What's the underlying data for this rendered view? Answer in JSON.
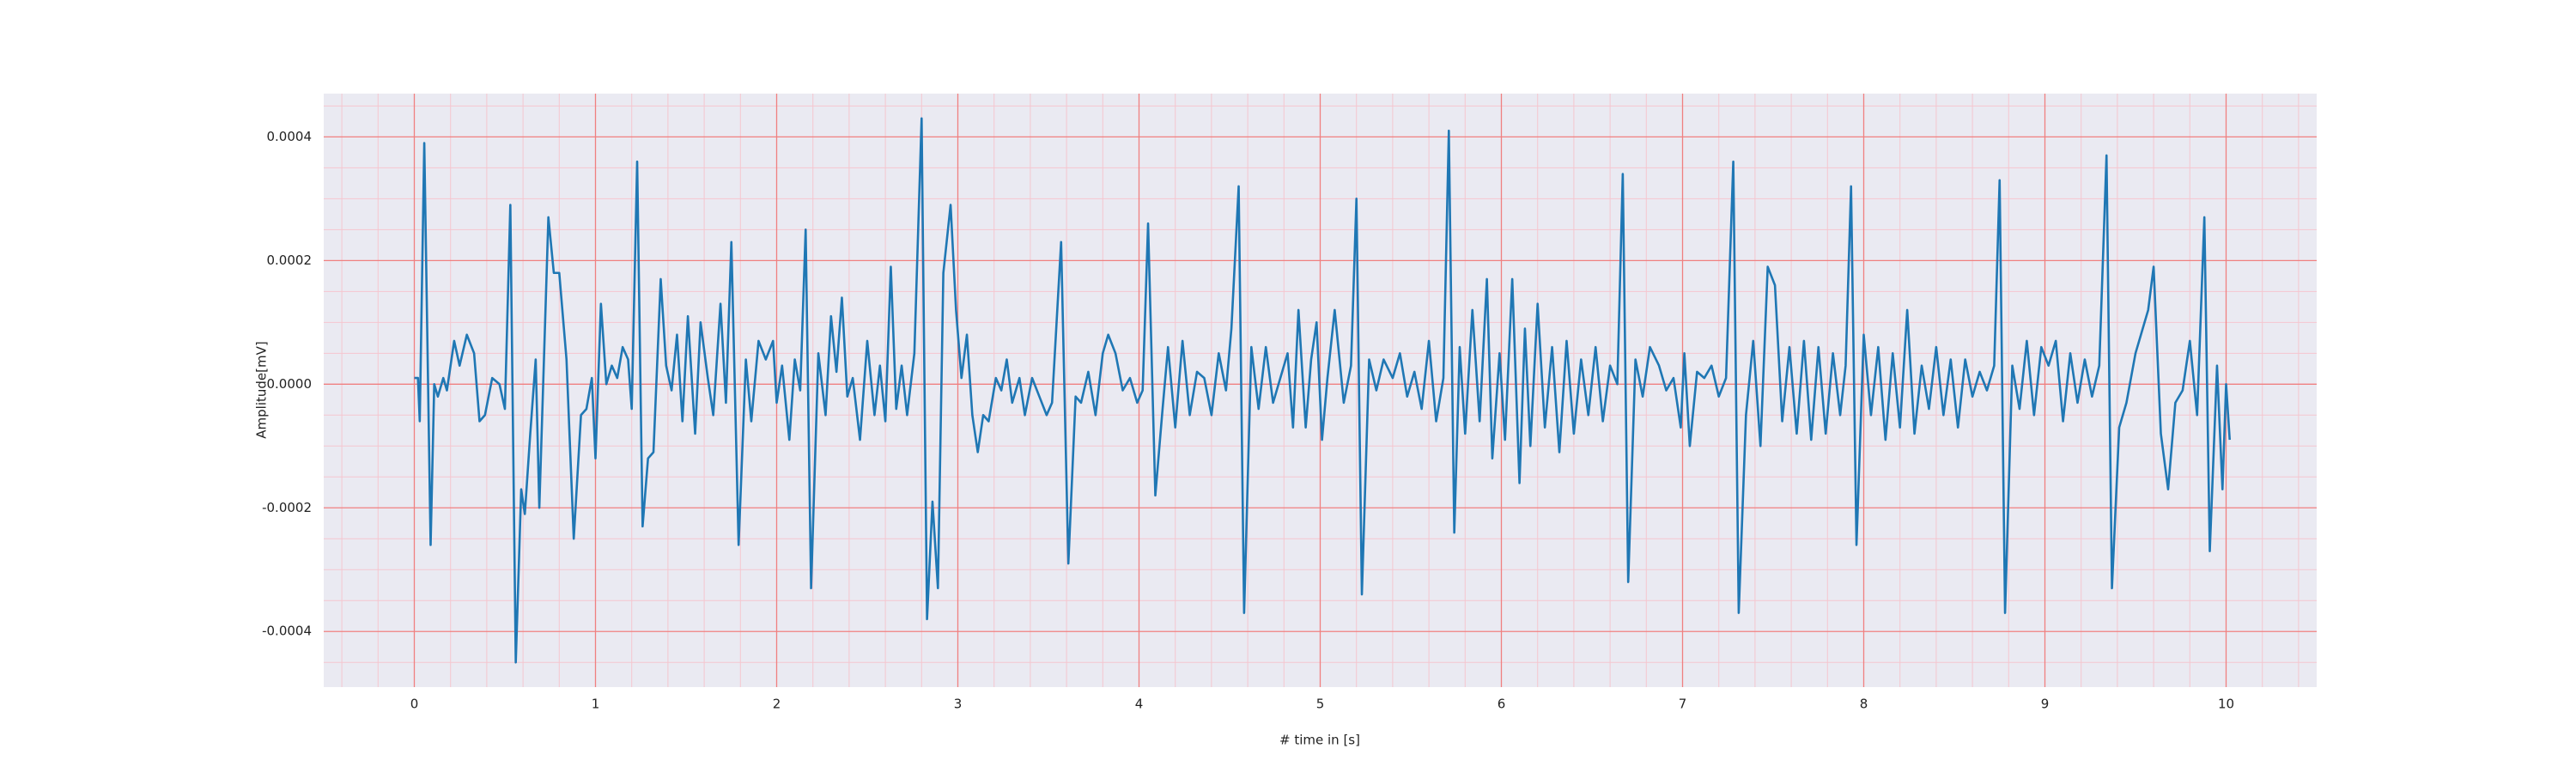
{
  "chart_data": {
    "type": "line",
    "xlabel": "# time in [s]",
    "ylabel": "Amplitude[mV]",
    "xlim": [
      -0.5,
      10.5
    ],
    "ylim": [
      -0.00049,
      0.00047
    ],
    "xticks": [
      0,
      1,
      2,
      3,
      4,
      5,
      6,
      7,
      8,
      9,
      10
    ],
    "yticks": [
      -0.0004,
      -0.0002,
      {
        "value": 0,
        "label": "0.0000"
      },
      0.0002,
      0.0004
    ],
    "grid": true,
    "minor_grid": true,
    "grid_color": "#f08080",
    "minor_grid_color": "#f5c6cf",
    "background": "#eaeaf2",
    "x": [
      0,
      0.02,
      0.03,
      0.055,
      0.09,
      0.11,
      0.13,
      0.16,
      0.18,
      0.22,
      0.25,
      0.29,
      0.33,
      0.36,
      0.39,
      0.43,
      0.47,
      0.5,
      0.53,
      0.56,
      0.59,
      0.61,
      0.64,
      0.67,
      0.69,
      0.74,
      0.77,
      0.8,
      0.84,
      0.88,
      0.92,
      0.95,
      0.98,
      1.0,
      1.03,
      1.06,
      1.09,
      1.12,
      1.15,
      1.18,
      1.2,
      1.23,
      1.26,
      1.29,
      1.32,
      1.36,
      1.39,
      1.42,
      1.45,
      1.48,
      1.51,
      1.55,
      1.58,
      1.62,
      1.65,
      1.69,
      1.72,
      1.75,
      1.79,
      1.83,
      1.86,
      1.9,
      1.94,
      1.98,
      2.0,
      2.03,
      2.07,
      2.1,
      2.13,
      2.16,
      2.19,
      2.23,
      2.27,
      2.3,
      2.33,
      2.36,
      2.39,
      2.42,
      2.46,
      2.5,
      2.54,
      2.57,
      2.6,
      2.63,
      2.66,
      2.69,
      2.72,
      2.76,
      2.8,
      2.83,
      2.86,
      2.89,
      2.92,
      2.96,
      2.99,
      3.02,
      3.05,
      3.08,
      3.11,
      3.14,
      3.17,
      3.21,
      3.24,
      3.27,
      3.3,
      3.34,
      3.37,
      3.41,
      3.45,
      3.49,
      3.52,
      3.57,
      3.61,
      3.65,
      3.68,
      3.72,
      3.76,
      3.8,
      3.83,
      3.87,
      3.91,
      3.95,
      3.99,
      4.02,
      4.05,
      4.09,
      4.13,
      4.16,
      4.2,
      4.24,
      4.28,
      4.32,
      4.36,
      4.4,
      4.44,
      4.48,
      4.51,
      4.55,
      4.58,
      4.62,
      4.66,
      4.7,
      4.74,
      4.78,
      4.82,
      4.85,
      4.88,
      4.92,
      4.95,
      4.98,
      5.01,
      5.04,
      5.08,
      5.13,
      5.17,
      5.2,
      5.23,
      5.27,
      5.31,
      5.35,
      5.4,
      5.44,
      5.48,
      5.52,
      5.56,
      5.6,
      5.64,
      5.68,
      5.71,
      5.74,
      5.77,
      5.8,
      5.84,
      5.88,
      5.92,
      5.95,
      5.99,
      6.02,
      6.06,
      6.1,
      6.13,
      6.16,
      6.2,
      6.24,
      6.28,
      6.32,
      6.36,
      6.4,
      6.44,
      6.48,
      6.52,
      6.56,
      6.6,
      6.64,
      6.67,
      6.7,
      6.74,
      6.78,
      6.82,
      6.87,
      6.91,
      6.95,
      6.99,
      7.01,
      7.04,
      7.08,
      7.12,
      7.16,
      7.2,
      7.24,
      7.28,
      7.31,
      7.35,
      7.39,
      7.43,
      7.47,
      7.51,
      7.55,
      7.59,
      7.63,
      7.67,
      7.71,
      7.75,
      7.79,
      7.83,
      7.87,
      7.9,
      7.93,
      7.96,
      8.0,
      8.04,
      8.08,
      8.12,
      8.16,
      8.2,
      8.24,
      8.28,
      8.32,
      8.36,
      8.4,
      8.44,
      8.48,
      8.52,
      8.56,
      8.6,
      8.64,
      8.68,
      8.72,
      8.75,
      8.78,
      8.82,
      8.86,
      8.9,
      8.94,
      8.98,
      9.02,
      9.06,
      9.1,
      9.14,
      9.18,
      9.22,
      9.26,
      9.3,
      9.34,
      9.37,
      9.41,
      9.45,
      9.5,
      9.54,
      9.57,
      9.6,
      9.64,
      9.68,
      9.72,
      9.76,
      9.8,
      9.84,
      9.88,
      9.91,
      9.95,
      9.98,
      10.0,
      10.02
    ],
    "series": [
      {
        "color": "#1f77b4",
        "values": [
          1e-05,
          1e-05,
          -6e-05,
          0.00039,
          -0.00026,
          0,
          -2e-05,
          1e-05,
          -1e-05,
          7e-05,
          3e-05,
          8e-05,
          5e-05,
          -6e-05,
          -5e-05,
          1e-05,
          0,
          -4e-05,
          0.00029,
          -0.00045,
          -0.00017,
          -0.00021,
          -8e-05,
          4e-05,
          -0.0002,
          0.00027,
          0.00018,
          0.00018,
          4e-05,
          -0.00025,
          -5e-05,
          -4e-05,
          1e-05,
          -0.00012,
          0.00013,
          0,
          3e-05,
          1e-05,
          6e-05,
          4e-05,
          -4e-05,
          0.00036,
          -0.00023,
          -0.00012,
          -0.00011,
          0.00017,
          3e-05,
          -1e-05,
          8e-05,
          -6e-05,
          0.00011,
          -8e-05,
          0.0001,
          1e-05,
          -5e-05,
          0.00013,
          -3e-05,
          0.00023,
          -0.00026,
          4e-05,
          -6e-05,
          7e-05,
          4e-05,
          7e-05,
          -3e-05,
          3e-05,
          -9e-05,
          4e-05,
          -1e-05,
          0.00025,
          -0.00033,
          5e-05,
          -5e-05,
          0.00011,
          2e-05,
          0.00014,
          -2e-05,
          1e-05,
          -9e-05,
          7e-05,
          -5e-05,
          3e-05,
          -6e-05,
          0.00019,
          -4e-05,
          3e-05,
          -5e-05,
          5e-05,
          0.00043,
          -0.00038,
          -0.00019,
          -0.00033,
          0.00018,
          0.00029,
          0.00012,
          1e-05,
          8e-05,
          -5e-05,
          -0.00011,
          -5e-05,
          -6e-05,
          1e-05,
          -1e-05,
          4e-05,
          -3e-05,
          1e-05,
          -5e-05,
          1e-05,
          -2e-05,
          -5e-05,
          -3e-05,
          0.00023,
          -0.00029,
          -2e-05,
          -3e-05,
          2e-05,
          -5e-05,
          5e-05,
          8e-05,
          5e-05,
          -1e-05,
          1e-05,
          -3e-05,
          -1e-05,
          0.00026,
          -0.00018,
          -4e-05,
          6e-05,
          -7e-05,
          7e-05,
          -5e-05,
          2e-05,
          1e-05,
          -5e-05,
          5e-05,
          -1e-05,
          9e-05,
          0.00032,
          -0.00037,
          6e-05,
          -4e-05,
          6e-05,
          -3e-05,
          1e-05,
          5e-05,
          -7e-05,
          0.00012,
          -7e-05,
          4e-05,
          0.0001,
          -9e-05,
          1e-05,
          0.00012,
          -3e-05,
          3e-05,
          0.0003,
          -0.00034,
          4e-05,
          -1e-05,
          4e-05,
          1e-05,
          5e-05,
          -2e-05,
          2e-05,
          -4e-05,
          7e-05,
          -6e-05,
          1e-05,
          0.00041,
          -0.00024,
          6e-05,
          -8e-05,
          0.00012,
          -6e-05,
          0.00017,
          -0.00012,
          5e-05,
          -9e-05,
          0.00017,
          -0.00016,
          9e-05,
          -0.0001,
          0.00013,
          -7e-05,
          6e-05,
          -0.00011,
          7e-05,
          -8e-05,
          4e-05,
          -5e-05,
          6e-05,
          -6e-05,
          3e-05,
          0,
          0.00034,
          -0.00032,
          4e-05,
          -2e-05,
          6e-05,
          3e-05,
          -1e-05,
          1e-05,
          -7e-05,
          5e-05,
          -0.0001,
          2e-05,
          1e-05,
          3e-05,
          -2e-05,
          1e-05,
          0.00036,
          -0.00037,
          -5e-05,
          7e-05,
          -0.0001,
          0.00019,
          0.00016,
          -6e-05,
          6e-05,
          -8e-05,
          7e-05,
          -9e-05,
          6e-05,
          -8e-05,
          5e-05,
          -5e-05,
          3e-05,
          0.00032,
          -0.00026,
          8e-05,
          -5e-05,
          6e-05,
          -9e-05,
          5e-05,
          -7e-05,
          0.00012,
          -8e-05,
          3e-05,
          -4e-05,
          6e-05,
          -5e-05,
          4e-05,
          -7e-05,
          4e-05,
          -2e-05,
          2e-05,
          -1e-05,
          3e-05,
          0.00033,
          -0.00037,
          3e-05,
          -4e-05,
          7e-05,
          -5e-05,
          6e-05,
          3e-05,
          7e-05,
          -6e-05,
          5e-05,
          -3e-05,
          4e-05,
          -2e-05,
          3e-05,
          0.00037,
          -0.00033,
          -7e-05,
          -3e-05,
          5e-05,
          9e-05,
          0.00012,
          0.00019,
          -8e-05,
          -0.00017,
          -3e-05,
          -1e-05,
          7e-05,
          -5e-05,
          0.00027,
          -0.00027,
          3e-05,
          -0.00017,
          0,
          -9e-05
        ]
      }
    ]
  }
}
